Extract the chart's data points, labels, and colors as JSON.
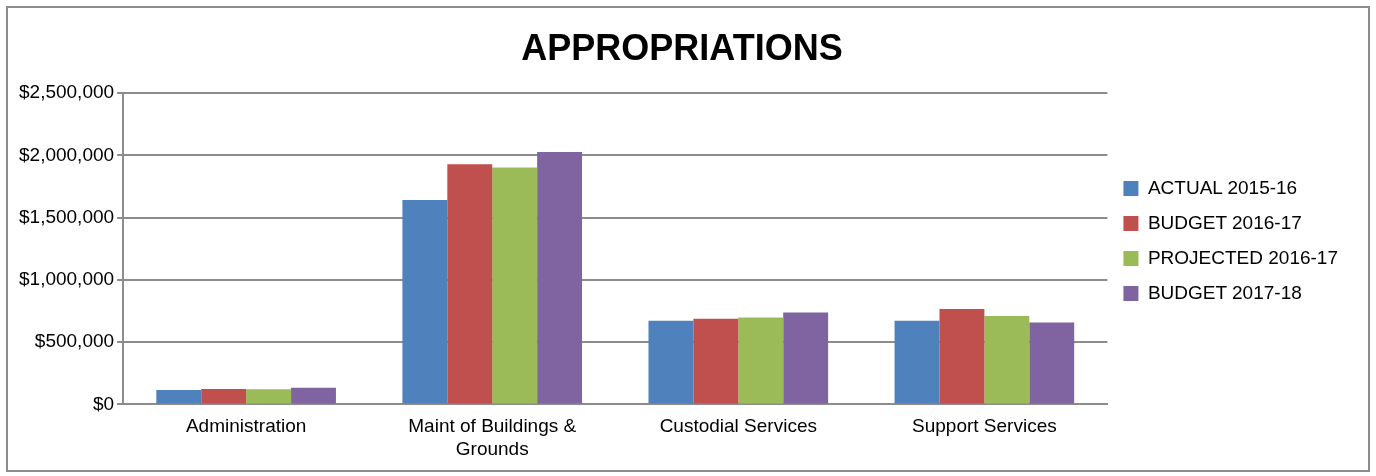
{
  "chart_data": {
    "type": "bar",
    "title": "APPROPRIATIONS",
    "categories": [
      "Administration",
      "Maint of Buildings & Grounds",
      "Custodial Services",
      "Support Services"
    ],
    "series": [
      {
        "name": "ACTUAL 2015-16",
        "color": "#4f81bd",
        "values": [
          115000,
          1643000,
          671000,
          671000
        ]
      },
      {
        "name": "BUDGET 2016-17",
        "color": "#c0504d",
        "values": [
          124000,
          1929000,
          689000,
          767000
        ]
      },
      {
        "name": "PROJECTED 2016-17",
        "color": "#9bbb59",
        "values": [
          121000,
          1904000,
          699000,
          711000
        ]
      },
      {
        "name": "BUDGET 2017-18",
        "color": "#8064a2",
        "values": [
          134000,
          2028000,
          739000,
          658000
        ]
      }
    ],
    "ylim": [
      0,
      2500000
    ],
    "yticks": [
      {
        "value": 0,
        "label": "$0"
      },
      {
        "value": 500000,
        "label": "$500,000"
      },
      {
        "value": 1000000,
        "label": "$1,000,000"
      },
      {
        "value": 1500000,
        "label": "$1,500,000"
      },
      {
        "value": 2000000,
        "label": "$2,000,000"
      },
      {
        "value": 2500000,
        "label": "$2,500,000"
      }
    ],
    "grid": "y",
    "legend": "right"
  }
}
